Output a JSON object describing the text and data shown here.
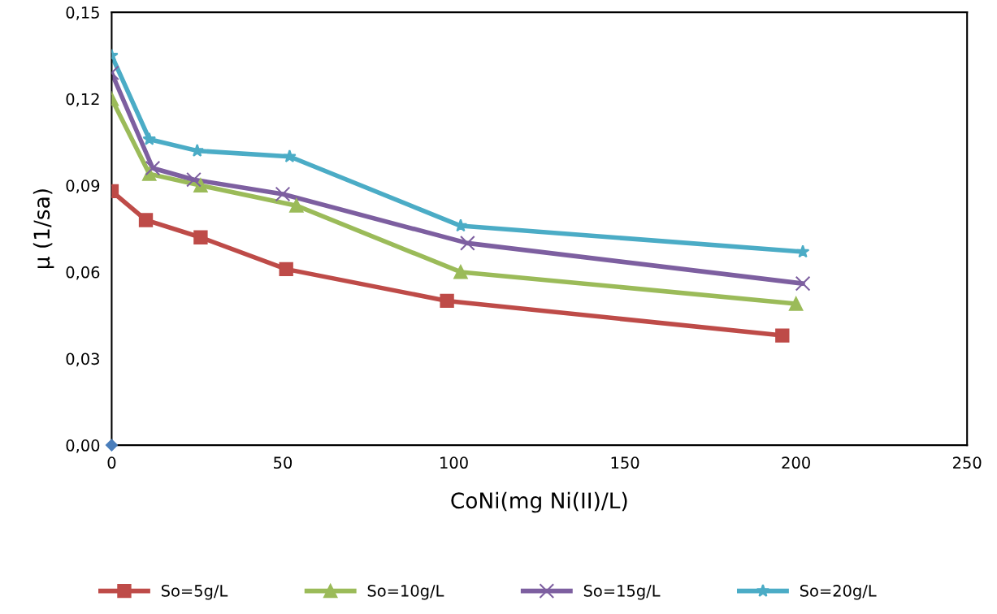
{
  "chart_data": {
    "type": "line",
    "xlabel": "CoNi(mg Ni(II)/L)",
    "ylabel": "μ (1/sa)",
    "xlim": [
      0,
      250
    ],
    "xticks": [
      0,
      50,
      100,
      150,
      200,
      250
    ],
    "ylim": [
      0,
      0.15
    ],
    "yticks": [
      {
        "value": 0,
        "label": "0,00"
      },
      {
        "value": 0.03,
        "label": "0,03"
      },
      {
        "value": 0.06,
        "label": "0,06"
      },
      {
        "value": 0.09,
        "label": "0,09"
      },
      {
        "value": 0.12,
        "label": "0,12"
      },
      {
        "value": 0.15,
        "label": "0,15"
      }
    ],
    "grid": false,
    "legend": "bottom",
    "series": [
      {
        "name": "So=5g/L",
        "color": "#be4b48",
        "marker": "square",
        "x": [
          0,
          10,
          26,
          51,
          98,
          196
        ],
        "values": [
          0.088,
          0.078,
          0.072,
          0.061,
          0.05,
          0.038
        ]
      },
      {
        "name": "So=10g/L",
        "color": "#9bbb59",
        "marker": "triangle",
        "x": [
          0,
          11,
          26,
          54,
          102,
          200
        ],
        "values": [
          0.12,
          0.094,
          0.09,
          0.083,
          0.06,
          0.049
        ]
      },
      {
        "name": "So=15g/L",
        "color": "#7d5fa0",
        "marker": "cross",
        "x": [
          0,
          12,
          24,
          50,
          104,
          202
        ],
        "values": [
          0.129,
          0.096,
          0.092,
          0.087,
          0.07,
          0.056
        ]
      },
      {
        "name": "So=20g/L",
        "color": "#4bacc6",
        "marker": "star",
        "x": [
          0,
          11,
          25,
          52,
          102,
          202
        ],
        "values": [
          0.135,
          0.106,
          0.102,
          0.1,
          0.076,
          0.067
        ]
      },
      {
        "type": "scatter",
        "color": "#4a7ebb",
        "marker": "diamond",
        "x": [
          0
        ],
        "values": [
          0
        ]
      }
    ]
  }
}
